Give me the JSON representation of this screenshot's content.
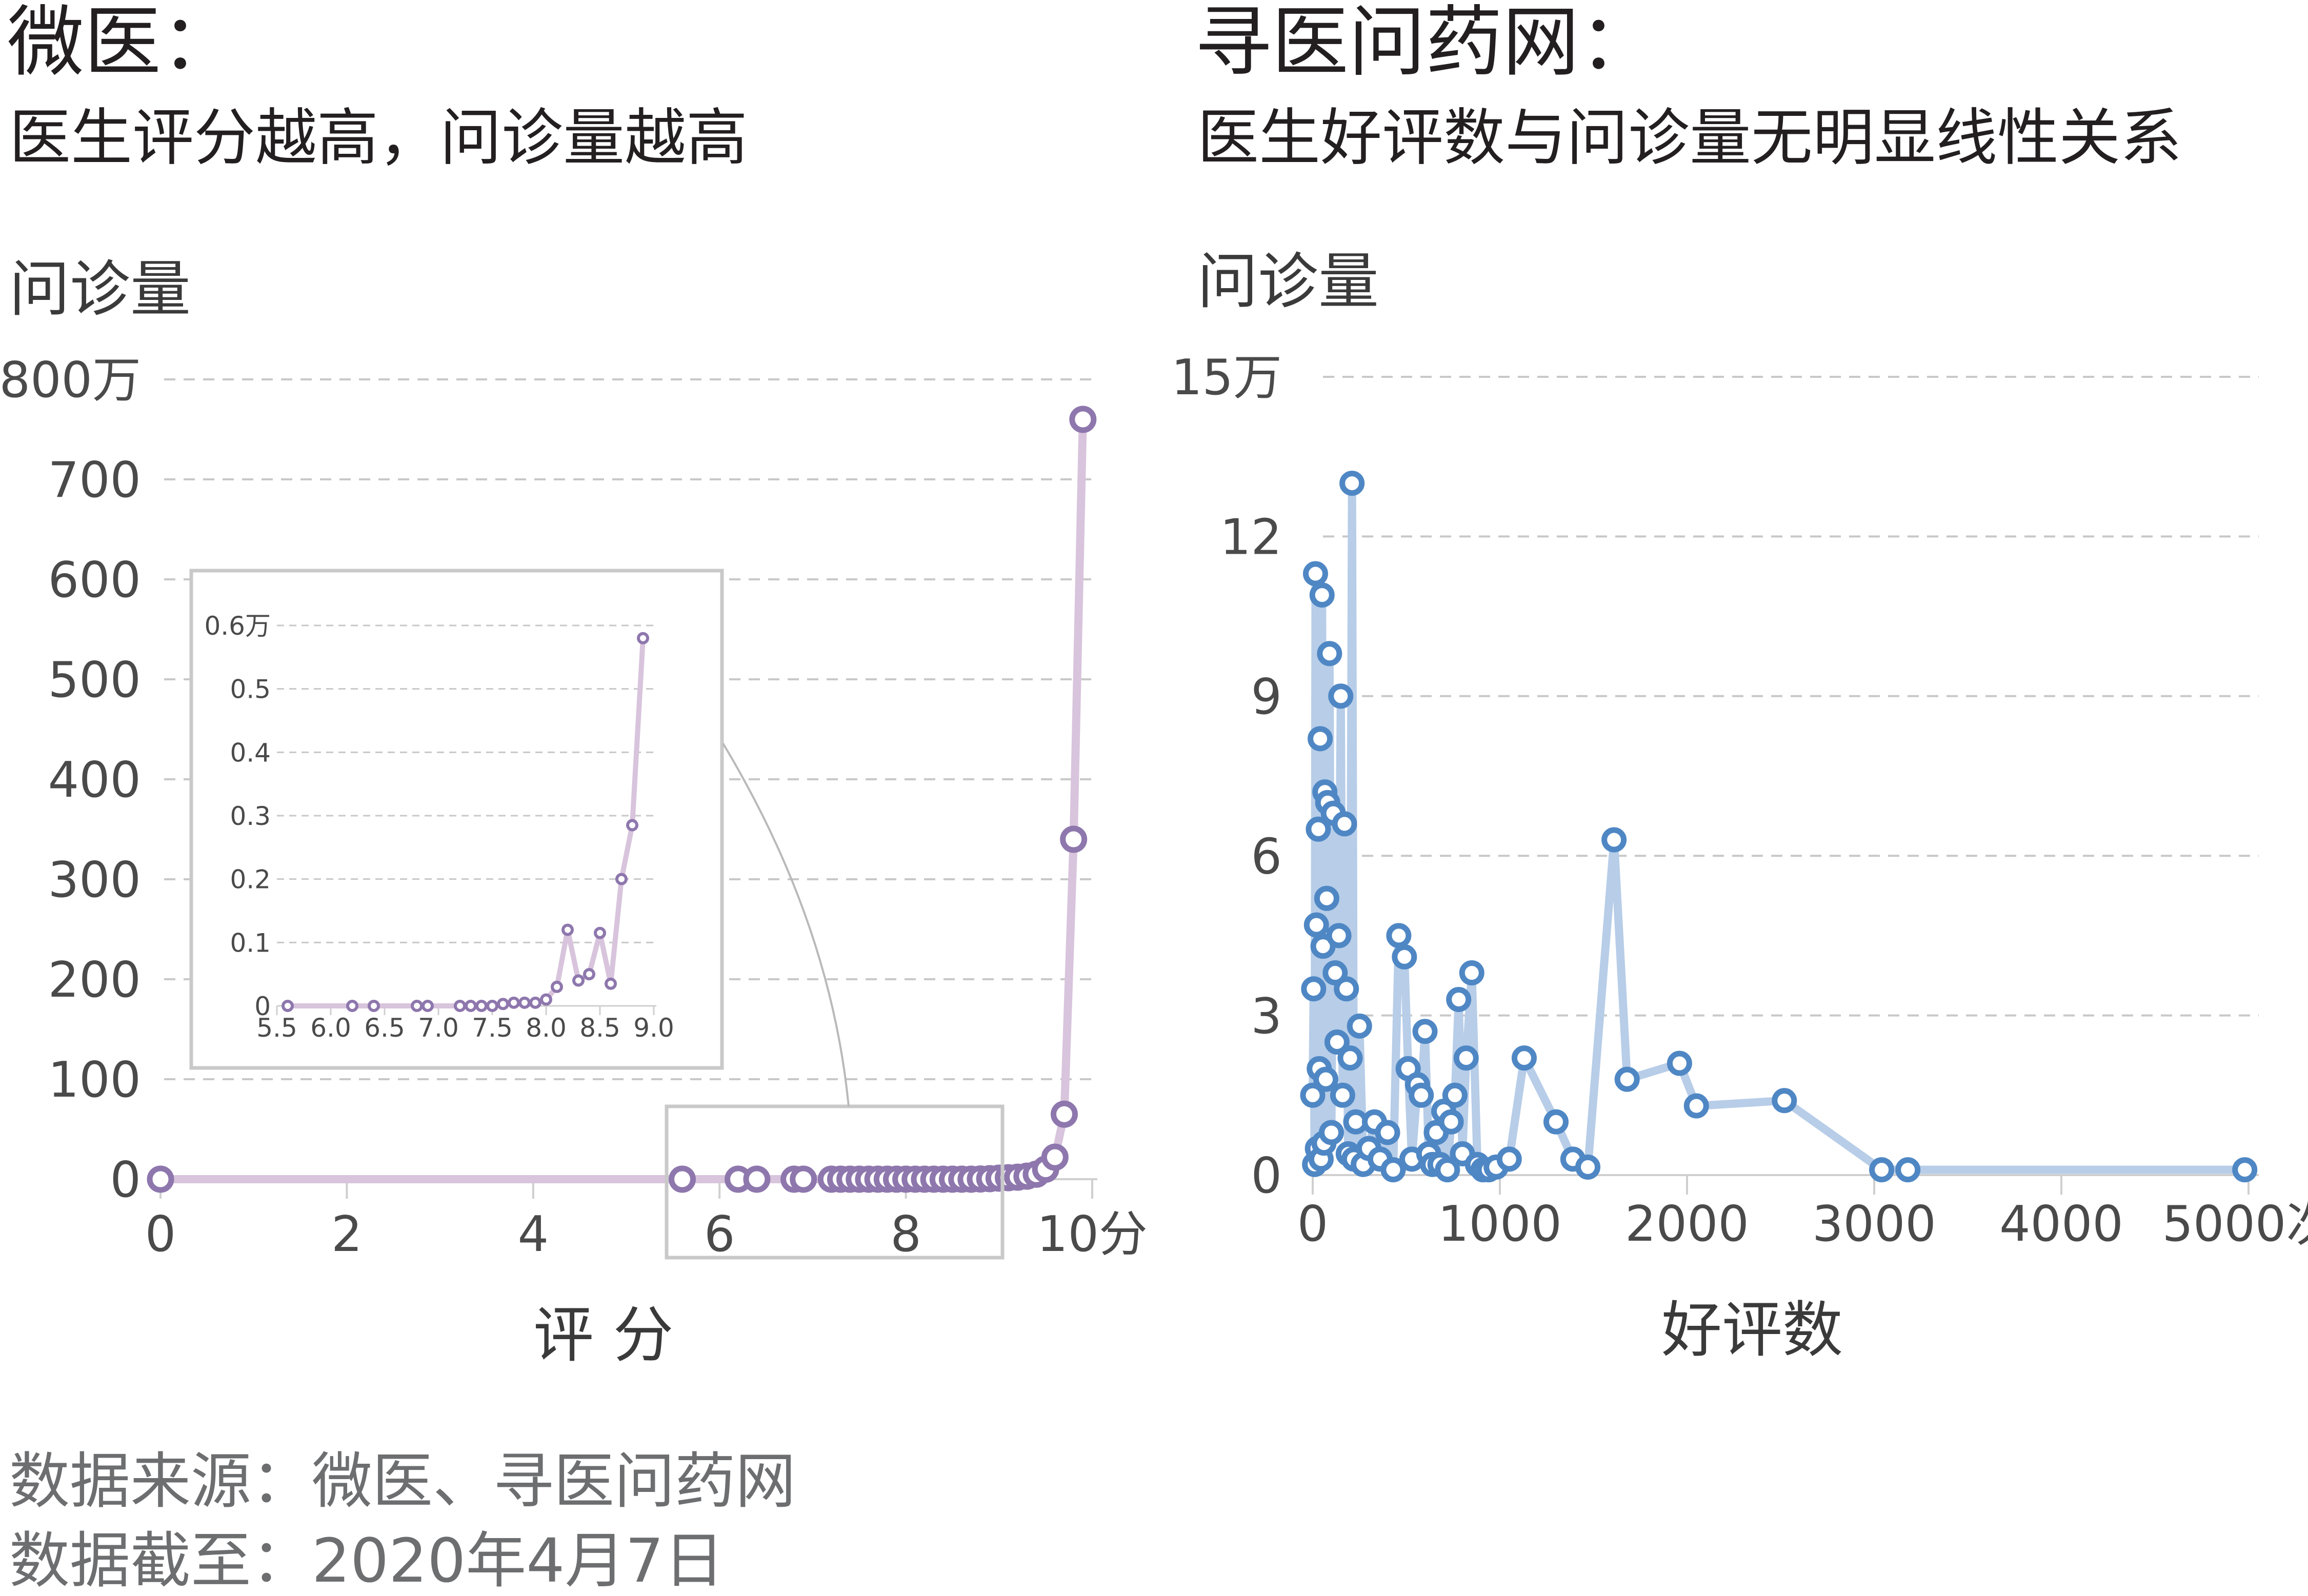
{
  "left": {
    "title": "微医：",
    "subtitle": "医生评分越高，问诊量越高",
    "ylabel": "问诊量",
    "xlabel": "评 分"
  },
  "right": {
    "title": "寻医问药网：",
    "subtitle": "医生好评数与问诊量无明显线性关系",
    "ylabel": "问诊量",
    "xlabel": "好评数"
  },
  "source": {
    "line1": "数据来源：微医、寻医问药网",
    "line2": "数据截至：2020年4月7日"
  },
  "colors": {
    "left_line": "#d8c4dc",
    "left_marker": "#8e77ad",
    "right_line": "#b7cde8",
    "right_marker": "#4f87c4",
    "grid": "#c8c8c8",
    "inset_border": "#c9c9c9"
  },
  "chart_data": [
    {
      "id": "weiyi",
      "type": "line",
      "xlim": [
        0,
        10
      ],
      "ylim": [
        0,
        800
      ],
      "x_ticks": [
        0,
        2,
        4,
        6,
        8,
        10
      ],
      "x_tick_labels": [
        "0",
        "2",
        "4",
        "6",
        "8",
        "10分"
      ],
      "y_ticks": [
        0,
        100,
        200,
        300,
        400,
        500,
        600,
        700,
        800
      ],
      "y_tick_labels": [
        "0",
        "100",
        "200",
        "300",
        "400",
        "500",
        "600",
        "700",
        "800万"
      ],
      "grid": "horizontal-dashed",
      "x": [
        0,
        5.6,
        6.2,
        6.4,
        6.8,
        6.9,
        7.2,
        7.3,
        7.4,
        7.5,
        7.6,
        7.7,
        7.8,
        7.9,
        8.0,
        8.1,
        8.2,
        8.3,
        8.4,
        8.5,
        8.6,
        8.7,
        8.8,
        8.9,
        9.0,
        9.1,
        9.2,
        9.3,
        9.4,
        9.5,
        9.6,
        9.7,
        9.8,
        9.9
      ],
      "y": [
        0,
        0,
        0,
        0,
        0,
        0,
        0,
        0,
        0,
        0,
        0,
        0,
        0,
        0,
        0,
        0,
        0,
        0,
        0,
        0,
        0,
        0,
        0.2,
        0.5,
        1,
        1.5,
        2,
        3,
        5,
        10,
        22,
        65,
        340,
        760
      ]
    },
    {
      "id": "weiyi-inset",
      "type": "line",
      "xlim": [
        5.5,
        9.0
      ],
      "ylim": [
        0,
        0.6
      ],
      "x_ticks": [
        5.5,
        6.0,
        6.5,
        7.0,
        7.5,
        8.0,
        8.5,
        9.0
      ],
      "x_tick_labels": [
        "5.5",
        "6.0",
        "6.5",
        "7.0",
        "7.5",
        "8.0",
        "8.5",
        "9.0"
      ],
      "y_ticks": [
        0,
        0.1,
        0.2,
        0.3,
        0.4,
        0.5,
        0.6
      ],
      "y_tick_labels": [
        "0",
        "0.1",
        "0.2",
        "0.3",
        "0.4",
        "0.5",
        "0.6万"
      ],
      "grid": "horizontal-dashed",
      "x": [
        5.6,
        6.2,
        6.4,
        6.8,
        6.9,
        7.2,
        7.3,
        7.4,
        7.5,
        7.6,
        7.7,
        7.8,
        7.9,
        8.0,
        8.1,
        8.2,
        8.3,
        8.4,
        8.5,
        8.6,
        8.7,
        8.8,
        8.9
      ],
      "y": [
        0,
        0,
        0,
        0,
        0,
        0,
        0,
        0,
        0,
        0.003,
        0.005,
        0.005,
        0.005,
        0.01,
        0.03,
        0.12,
        0.04,
        0.05,
        0.115,
        0.035,
        0.2,
        0.285,
        0.58
      ]
    },
    {
      "id": "xunyi",
      "type": "line",
      "xlim": [
        0,
        5000
      ],
      "ylim": [
        0,
        15
      ],
      "x_ticks": [
        0,
        1000,
        2000,
        3000,
        4000,
        5000
      ],
      "x_tick_labels": [
        "0",
        "1000",
        "2000",
        "3000",
        "4000",
        "5000次"
      ],
      "y_ticks": [
        0,
        3,
        6,
        9,
        12,
        15
      ],
      "y_tick_labels": [
        "0",
        "3",
        "6",
        "9",
        "12",
        "15万"
      ],
      "grid": "horizontal-dashed",
      "x": [
        0,
        5,
        10,
        15,
        20,
        25,
        30,
        35,
        40,
        45,
        50,
        55,
        60,
        65,
        70,
        75,
        80,
        90,
        100,
        110,
        120,
        130,
        140,
        150,
        160,
        170,
        180,
        190,
        200,
        210,
        220,
        230,
        250,
        270,
        300,
        330,
        360,
        400,
        430,
        460,
        490,
        510,
        530,
        560,
        580,
        600,
        620,
        640,
        660,
        680,
        700,
        720,
        740,
        760,
        780,
        800,
        820,
        850,
        880,
        910,
        940,
        980,
        1050,
        1130,
        1300,
        1390,
        1470,
        1610,
        1680,
        1960,
        2050,
        2520,
        3040,
        3180,
        4980
      ],
      "y": [
        1.5,
        3.5,
        0.2,
        11.3,
        4.7,
        0.5,
        6.5,
        2.0,
        8.2,
        0.3,
        10.9,
        4.3,
        0.6,
        7.2,
        1.8,
        5.2,
        7.0,
        9.8,
        0.8,
        6.8,
        3.8,
        2.5,
        4.5,
        9.0,
        1.5,
        6.6,
        3.5,
        0.4,
        2.2,
        13.0,
        0.3,
        1.0,
        2.8,
        0.2,
        0.5,
        1.0,
        0.3,
        0.8,
        0.1,
        4.5,
        4.1,
        2.0,
        0.3,
        1.7,
        1.5,
        2.7,
        0.4,
        0.2,
        0.8,
        0.2,
        1.2,
        0.1,
        1.0,
        1.5,
        3.3,
        0.4,
        2.2,
        3.8,
        0.2,
        0.1,
        0.1,
        0.15,
        0.3,
        2.2,
        1.0,
        0.3,
        0.15,
        6.3,
        1.8,
        2.1,
        1.3,
        1.4,
        0.1,
        0.1,
        0.1
      ]
    }
  ]
}
